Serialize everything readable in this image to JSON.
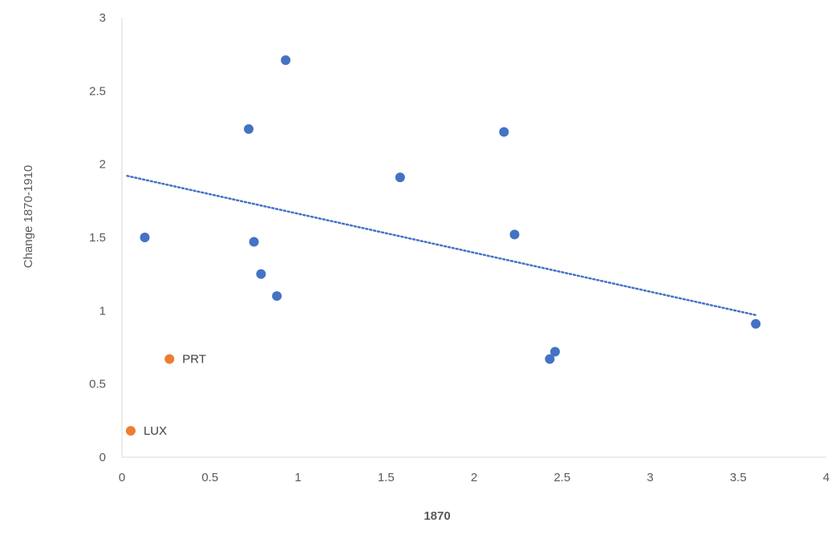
{
  "chart_data": {
    "type": "scatter",
    "title": "",
    "xlabel": "1870",
    "ylabel": "Change 1870-1910",
    "xlim": [
      0,
      4
    ],
    "ylim": [
      0,
      3
    ],
    "x_ticks": [
      "0",
      "0.5",
      "1",
      "1.5",
      "2",
      "2.5",
      "3",
      "3.5",
      "4"
    ],
    "y_ticks": [
      "0",
      "0.5",
      "1",
      "1.5",
      "2",
      "2.5",
      "3"
    ],
    "grid": false,
    "legend": "none",
    "colors": {
      "main": "#4472C4",
      "highlight": "#ED7D31",
      "axis": "#D9D9D9",
      "text": "#595959"
    },
    "series": [
      {
        "points": [
          {
            "x": 0.13,
            "y": 1.5
          },
          {
            "x": 0.72,
            "y": 2.24
          },
          {
            "x": 0.75,
            "y": 1.47
          },
          {
            "x": 0.79,
            "y": 1.25
          },
          {
            "x": 0.88,
            "y": 1.1
          },
          {
            "x": 0.93,
            "y": 2.71
          },
          {
            "x": 1.58,
            "y": 1.91
          },
          {
            "x": 2.17,
            "y": 2.22
          },
          {
            "x": 2.23,
            "y": 1.52
          },
          {
            "x": 2.43,
            "y": 0.67
          },
          {
            "x": 2.46,
            "y": 0.72
          },
          {
            "x": 3.6,
            "y": 0.91
          }
        ]
      },
      {
        "points": [
          {
            "x": 0.27,
            "y": 0.67,
            "label": "PRT"
          },
          {
            "x": 0.05,
            "y": 0.18,
            "label": "LUX"
          }
        ]
      }
    ],
    "trendline": {
      "style": "dotted",
      "from": {
        "x": 0.03,
        "y": 1.92
      },
      "to": {
        "x": 3.6,
        "y": 0.97
      }
    }
  }
}
